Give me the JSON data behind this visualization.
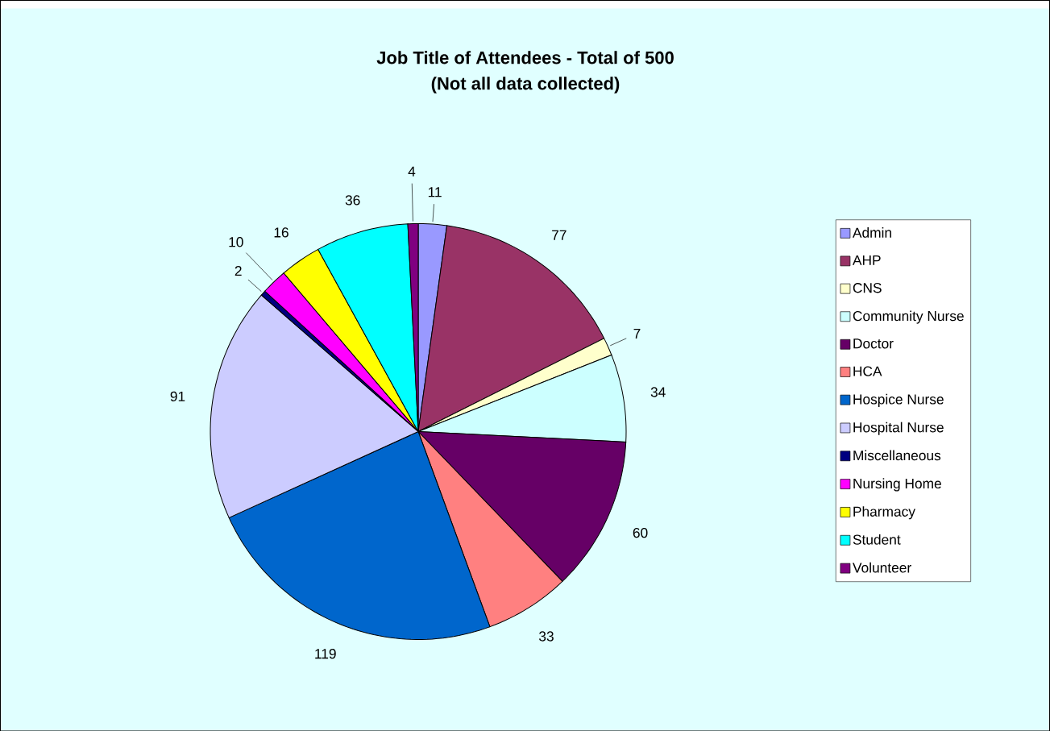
{
  "chart_data": {
    "type": "pie",
    "title": "Job Title of Attendees  - Total of 500",
    "subtitle": "(Not all data collected)",
    "categories": [
      "Admin",
      "AHP",
      "CNS",
      "Community Nurse",
      "Doctor",
      "HCA",
      "Hospice Nurse",
      "Hospital Nurse",
      "Miscellaneous",
      "Nursing Home",
      "Pharmacy",
      "Student",
      "Volunteer"
    ],
    "values": [
      11,
      77,
      7,
      34,
      60,
      33,
      119,
      91,
      2,
      10,
      16,
      36,
      4
    ],
    "colors": [
      "#9999ff",
      "#993366",
      "#ffffcc",
      "#ccffff",
      "#660066",
      "#ff8080",
      "#0066cc",
      "#ccccff",
      "#000080",
      "#ff00ff",
      "#ffff00",
      "#00ffff",
      "#800080"
    ],
    "data_labels": true,
    "legend": "right"
  }
}
